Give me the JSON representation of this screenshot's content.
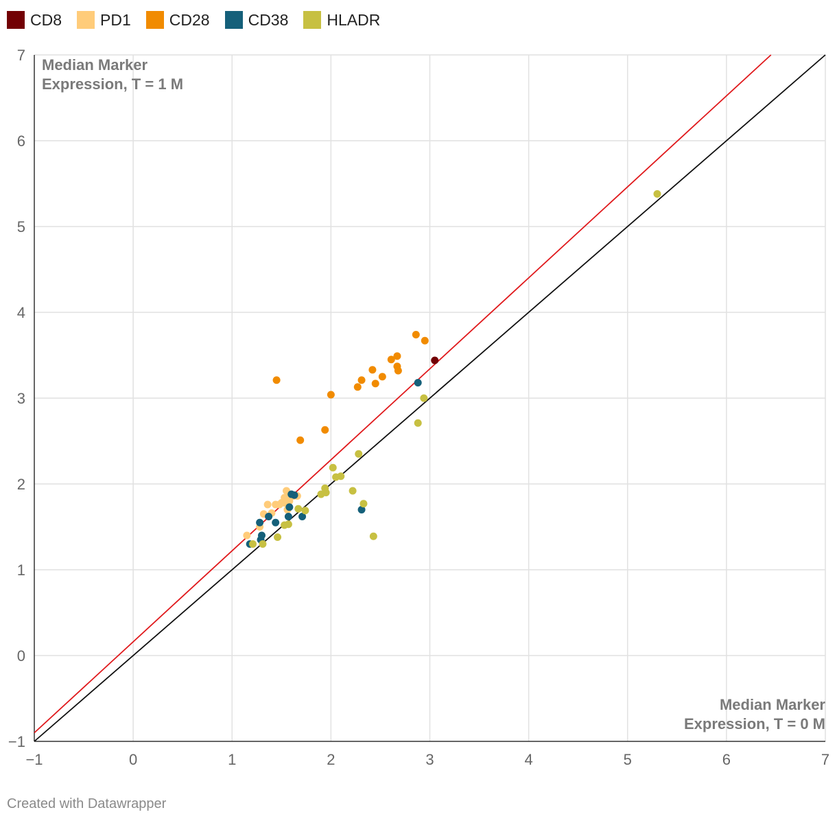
{
  "chart_data": {
    "type": "scatter",
    "xlim": [
      -1,
      7
    ],
    "ylim": [
      -1,
      7
    ],
    "x_ticks": [
      "−1",
      "0",
      "1",
      "2",
      "3",
      "4",
      "5",
      "6",
      "7"
    ],
    "y_ticks": [
      "−1",
      "0",
      "1",
      "2",
      "3",
      "4",
      "5",
      "6",
      "7"
    ],
    "grid": true,
    "legend_position": "top-left",
    "annotation_top_left": [
      "Median Marker",
      "Expression, T = 1 M"
    ],
    "annotation_bottom_right": [
      "Median Marker",
      "Expression, T = 0 M"
    ],
    "reference_lines": [
      {
        "name": "identity",
        "color": "#111111",
        "points": [
          [
            -1,
            -1
          ],
          [
            7,
            7
          ]
        ]
      },
      {
        "name": "trend",
        "color": "#e0191c",
        "points": [
          [
            -1,
            -0.9
          ],
          [
            6.45,
            7
          ]
        ]
      }
    ],
    "series": [
      {
        "name": "CD8",
        "color": "#720004",
        "points": [
          [
            3.05,
            3.44
          ]
        ]
      },
      {
        "name": "PD1",
        "color": "#ffcc7a",
        "points": [
          [
            1.15,
            1.4
          ],
          [
            1.28,
            1.5
          ],
          [
            1.32,
            1.65
          ],
          [
            1.36,
            1.76
          ],
          [
            1.4,
            1.66
          ],
          [
            1.44,
            1.76
          ],
          [
            1.48,
            1.76
          ],
          [
            1.5,
            1.78
          ],
          [
            1.53,
            1.84
          ],
          [
            1.53,
            1.78
          ],
          [
            1.55,
            1.92
          ],
          [
            1.57,
            1.85
          ],
          [
            1.58,
            1.8
          ],
          [
            1.62,
            1.86
          ],
          [
            1.66,
            1.86
          ],
          [
            1.56,
            1.7
          ]
        ]
      },
      {
        "name": "CD28",
        "color": "#f18b00",
        "points": [
          [
            1.45,
            3.21
          ],
          [
            1.69,
            2.51
          ],
          [
            1.94,
            2.63
          ],
          [
            2.0,
            3.04
          ],
          [
            2.27,
            3.13
          ],
          [
            2.31,
            3.21
          ],
          [
            2.42,
            3.33
          ],
          [
            2.45,
            3.17
          ],
          [
            2.52,
            3.25
          ],
          [
            2.61,
            3.45
          ],
          [
            2.67,
            3.49
          ],
          [
            2.67,
            3.37
          ],
          [
            2.68,
            3.32
          ],
          [
            2.86,
            3.74
          ],
          [
            2.95,
            3.67
          ]
        ]
      },
      {
        "name": "CD38",
        "color": "#15607a",
        "points": [
          [
            1.18,
            1.3
          ],
          [
            1.28,
            1.55
          ],
          [
            1.29,
            1.35
          ],
          [
            1.3,
            1.4
          ],
          [
            1.37,
            1.62
          ],
          [
            1.44,
            1.55
          ],
          [
            1.57,
            1.62
          ],
          [
            1.58,
            1.73
          ],
          [
            1.6,
            1.88
          ],
          [
            1.63,
            1.87
          ],
          [
            1.71,
            1.62
          ],
          [
            2.31,
            1.7
          ],
          [
            2.88,
            3.18
          ]
        ]
      },
      {
        "name": "HLADR",
        "color": "#c7c042",
        "points": [
          [
            1.21,
            1.3
          ],
          [
            1.31,
            1.3
          ],
          [
            1.46,
            1.38
          ],
          [
            1.53,
            1.52
          ],
          [
            1.57,
            1.53
          ],
          [
            1.67,
            1.71
          ],
          [
            1.74,
            1.69
          ],
          [
            1.9,
            1.88
          ],
          [
            1.94,
            1.95
          ],
          [
            1.95,
            1.9
          ],
          [
            2.02,
            2.19
          ],
          [
            2.05,
            2.08
          ],
          [
            2.1,
            2.09
          ],
          [
            2.22,
            1.92
          ],
          [
            2.28,
            2.35
          ],
          [
            2.33,
            1.77
          ],
          [
            2.43,
            1.39
          ],
          [
            2.88,
            2.71
          ],
          [
            2.94,
            3.0
          ],
          [
            5.3,
            5.38
          ]
        ]
      }
    ]
  },
  "footer": {
    "credit": "Created with Datawrapper"
  }
}
